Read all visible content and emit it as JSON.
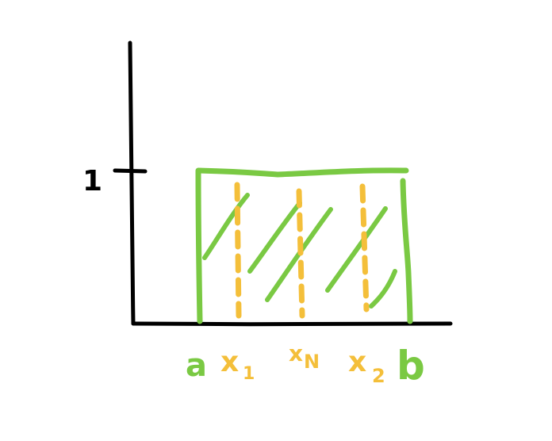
{
  "diagram": {
    "y_tick_label": "1",
    "x_labels": {
      "a": "a",
      "x1": "x",
      "x1_sub": "1",
      "xN": "x",
      "xN_sub": "N",
      "x2": "x",
      "x2_sub": "2",
      "b": "b"
    },
    "colors": {
      "axes": "#000000",
      "region": "#7ac943",
      "samples": "#f4bf3a"
    }
  }
}
